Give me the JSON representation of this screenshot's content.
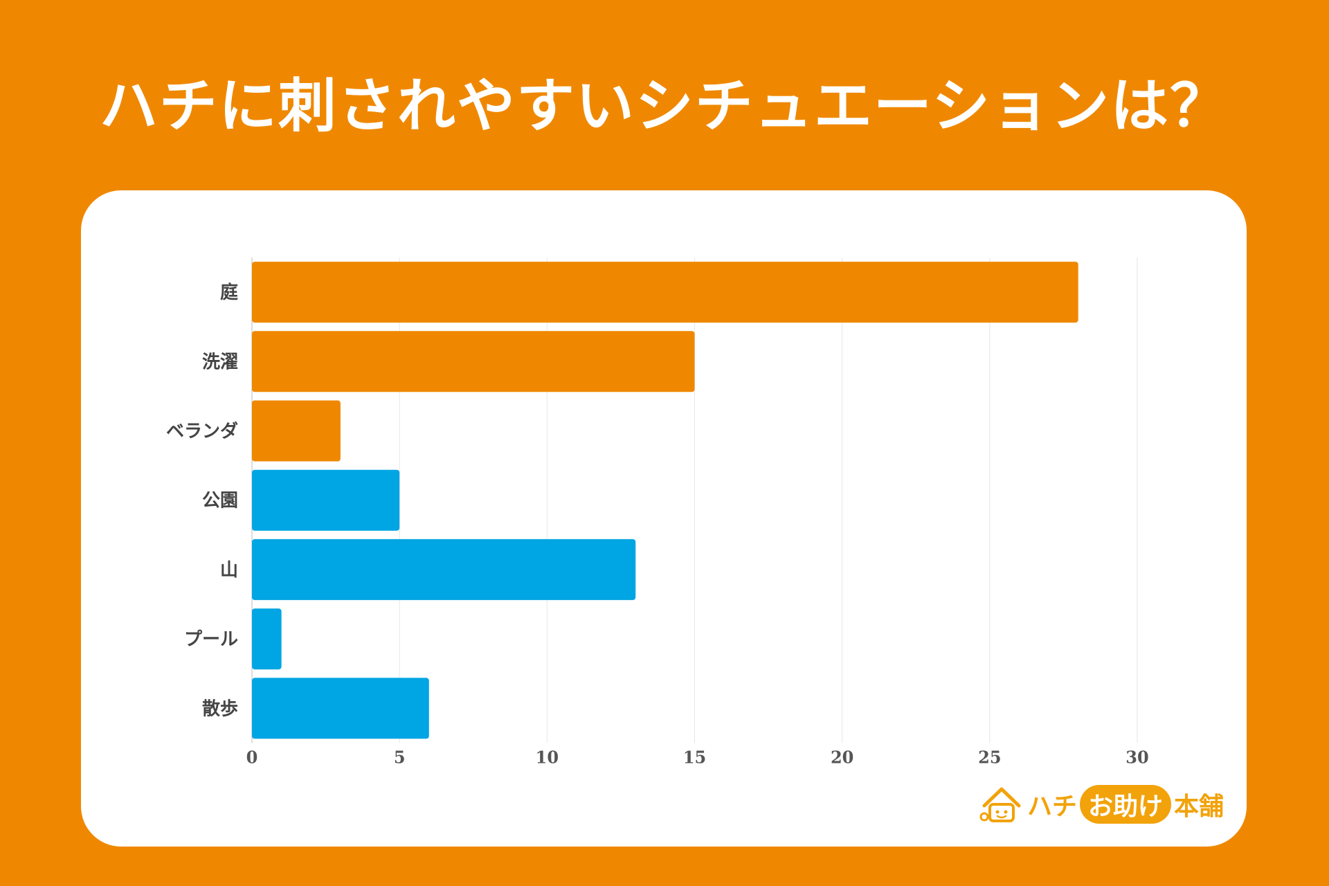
{
  "title": "ハチに刺されやすいシチュエーションは？",
  "logo": {
    "prefix": "ハチ",
    "pill": "お助け",
    "suffix": "本舗",
    "icon": "bee-house-icon"
  },
  "colors": {
    "background": "#EF8800",
    "orange_bar": "#EF8800",
    "blue_bar": "#00A5E3",
    "logo": "#F2A20A"
  },
  "chart_data": {
    "type": "bar",
    "orientation": "horizontal",
    "title": "",
    "xlabel": "",
    "ylabel": "",
    "categories": [
      "庭",
      "洗濯",
      "ベランダ",
      "公園",
      "山",
      "プール",
      "散歩"
    ],
    "values": [
      28,
      15,
      3,
      5,
      13,
      1,
      6
    ],
    "bar_colors": [
      "#EF8800",
      "#EF8800",
      "#EF8800",
      "#00A5E3",
      "#00A5E3",
      "#00A5E3",
      "#00A5E3"
    ],
    "xlim": [
      0,
      30
    ],
    "xticks": [
      0,
      5,
      10,
      15,
      20,
      25,
      30
    ],
    "grid": "vertical",
    "legend": "none"
  }
}
